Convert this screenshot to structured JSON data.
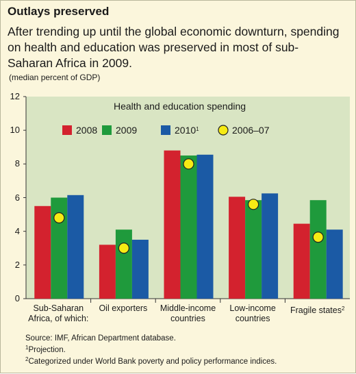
{
  "header": {
    "title": "Outlays preserved",
    "subtitle": "After trending up until the global economic downturn, spending on health and education was preserved in most of sub-Saharan Africa in 2009.",
    "unit": "(median percent of GDP)"
  },
  "chart_data": {
    "type": "bar",
    "title": "Health and education spending",
    "categories": [
      [
        "Sub-Saharan",
        "Africa, of which:"
      ],
      [
        "Oil exporters"
      ],
      [
        "Middle-income",
        "countries"
      ],
      [
        "Low-income",
        "countries"
      ],
      [
        "Fragile states"
      ]
    ],
    "category_sup": [
      "",
      "",
      "",
      "",
      "2"
    ],
    "series": [
      {
        "name": "2008",
        "values": [
          5.5,
          3.2,
          8.8,
          6.05,
          4.45
        ],
        "color": "#d3222e"
      },
      {
        "name": "2009",
        "values": [
          6.0,
          4.1,
          8.5,
          5.85,
          5.85
        ],
        "color": "#1f9a3c"
      },
      {
        "name": "2010",
        "name_sup": "1",
        "values": [
          6.15,
          3.5,
          8.55,
          6.25,
          4.1
        ],
        "color": "#1b5aa5"
      }
    ],
    "markers": {
      "name": "2006–07",
      "values": [
        4.8,
        3.0,
        8.0,
        5.6,
        3.65
      ],
      "color": "#f6eb14"
    },
    "ylim": [
      0,
      12
    ],
    "yticks": [
      0,
      2,
      4,
      6,
      8,
      10,
      12
    ],
    "grid": false,
    "legend_position": "top",
    "plot_background": "#d9e5c3"
  },
  "notes": {
    "source": "Source: IMF, African Department database.",
    "fn1_mark": "1",
    "fn1": "Projection.",
    "fn2_mark": "2",
    "fn2": "Categorized under World Bank poverty and policy performance indices."
  }
}
